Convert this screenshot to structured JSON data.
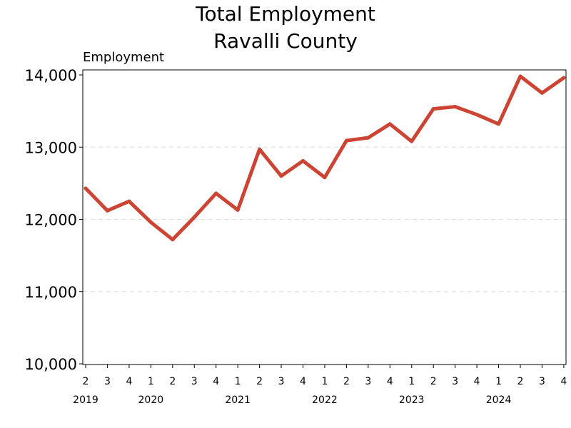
{
  "chart_data": {
    "type": "line",
    "title": "Total Employment",
    "subtitle": "Ravalli County",
    "ylabel": "Employment",
    "xlabel": "",
    "ylim": [
      10000,
      14000
    ],
    "yticks": [
      10000,
      11000,
      12000,
      13000,
      14000
    ],
    "ytick_labels": [
      "10,000",
      "11,000",
      "12,000",
      "13,000",
      "14,000"
    ],
    "grid": "horizontal dashed",
    "line_color": "#cc4433",
    "x": [
      "2019 Q2",
      "2019 Q3",
      "2019 Q4",
      "2020 Q1",
      "2020 Q2",
      "2020 Q3",
      "2020 Q4",
      "2021 Q1",
      "2021 Q2",
      "2021 Q3",
      "2021 Q4",
      "2022 Q1",
      "2022 Q2",
      "2022 Q3",
      "2022 Q4",
      "2023 Q1",
      "2023 Q2",
      "2023 Q3",
      "2023 Q4",
      "2024 Q1",
      "2024 Q2",
      "2024 Q3",
      "2024 Q4"
    ],
    "quarter_labels": [
      "2",
      "3",
      "4",
      "1",
      "2",
      "3",
      "4",
      "1",
      "2",
      "3",
      "4",
      "1",
      "2",
      "3",
      "4",
      "1",
      "2",
      "3",
      "4",
      "1",
      "2",
      "3",
      "4"
    ],
    "year_labels": [
      {
        "label": "2019",
        "index": 0
      },
      {
        "label": "2020",
        "index": 3
      },
      {
        "label": "2021",
        "index": 7
      },
      {
        "label": "2022",
        "index": 11
      },
      {
        "label": "2023",
        "index": 15
      },
      {
        "label": "2024",
        "index": 19
      }
    ],
    "series": [
      {
        "values": [
          12430,
          12120,
          12250,
          11960,
          11720,
          12030,
          12360,
          12130,
          12970,
          12600,
          12810,
          12580,
          13090,
          13130,
          13320,
          13080,
          13530,
          13560,
          13450,
          13320,
          13980,
          13750,
          13960
        ]
      }
    ]
  }
}
